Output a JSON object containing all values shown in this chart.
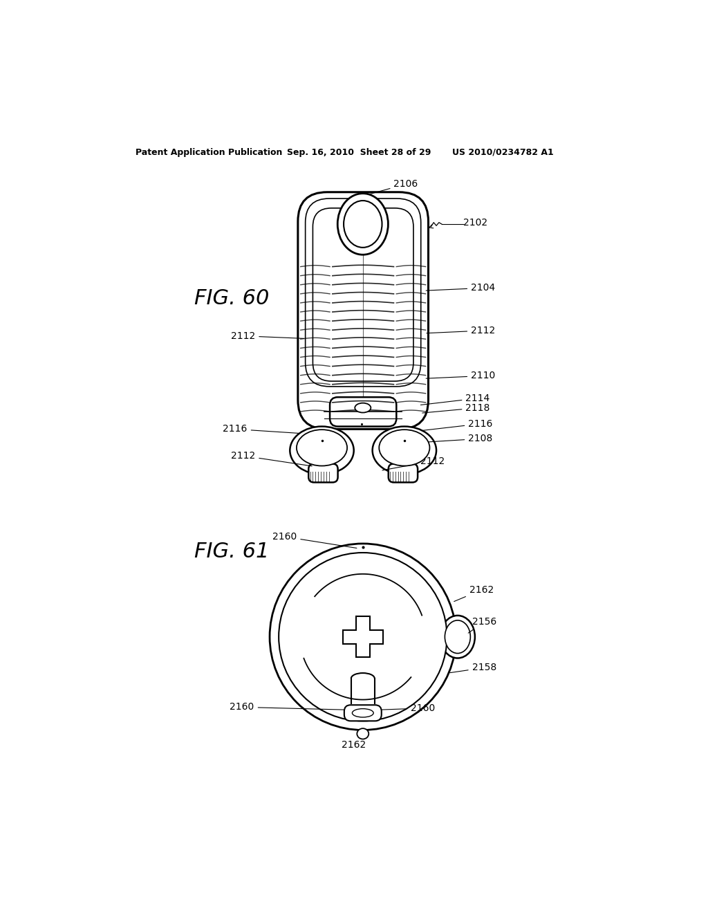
{
  "bg_color": "#ffffff",
  "header_left": "Patent Application Publication",
  "header_mid": "Sep. 16, 2010  Sheet 28 of 29",
  "header_right": "US 2010/0234782 A1",
  "fig60_label": "FIG. 60",
  "fig61_label": "FIG. 61"
}
